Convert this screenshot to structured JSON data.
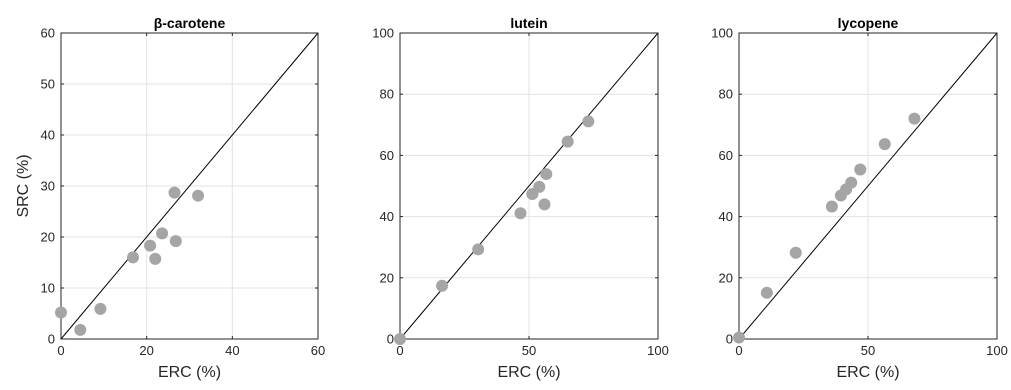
{
  "chart_data": [
    {
      "type": "scatter",
      "title": "β-carotene",
      "xlabel": "ERC (%)",
      "ylabel": "SRC (%)",
      "xlim": [
        0,
        60
      ],
      "ylim": [
        0,
        60
      ],
      "xticks": [
        "0",
        "20",
        "40",
        "60"
      ],
      "yticks": [
        "0",
        "10",
        "20",
        "30",
        "40",
        "50",
        "60"
      ],
      "grid": true,
      "reference_line": "y = x",
      "points": [
        {
          "x": 0,
          "y": 5.2
        },
        {
          "x": 4.5,
          "y": 1.8
        },
        {
          "x": 9.2,
          "y": 5.9
        },
        {
          "x": 16.8,
          "y": 16.0
        },
        {
          "x": 20.8,
          "y": 18.3
        },
        {
          "x": 22.0,
          "y": 15.7
        },
        {
          "x": 23.6,
          "y": 20.7
        },
        {
          "x": 26.5,
          "y": 28.7
        },
        {
          "x": 26.8,
          "y": 19.2
        },
        {
          "x": 32.0,
          "y": 28.1
        }
      ]
    },
    {
      "type": "scatter",
      "title": "lutein",
      "xlabel": "ERC (%)",
      "ylabel": "",
      "xlim": [
        0,
        100
      ],
      "ylim": [
        0,
        100
      ],
      "xticks": [
        "0",
        "50",
        "100"
      ],
      "yticks": [
        "0",
        "20",
        "40",
        "60",
        "80",
        "100"
      ],
      "grid": true,
      "reference_line": "y = x",
      "points": [
        {
          "x": 0,
          "y": 0
        },
        {
          "x": 16.3,
          "y": 17.4
        },
        {
          "x": 30.3,
          "y": 29.3
        },
        {
          "x": 46.7,
          "y": 41.1
        },
        {
          "x": 51.3,
          "y": 47.4
        },
        {
          "x": 54.0,
          "y": 49.7
        },
        {
          "x": 56.0,
          "y": 44.0
        },
        {
          "x": 56.7,
          "y": 53.9
        },
        {
          "x": 65.0,
          "y": 64.5
        },
        {
          "x": 73.0,
          "y": 71.1
        }
      ]
    },
    {
      "type": "scatter",
      "title": "lycopene",
      "xlabel": "ERC (%)",
      "ylabel": "",
      "xlim": [
        0,
        100
      ],
      "ylim": [
        0,
        100
      ],
      "xticks": [
        "0",
        "50",
        "100"
      ],
      "yticks": [
        "0",
        "20",
        "40",
        "60",
        "80",
        "100"
      ],
      "grid": true,
      "reference_line": "y = x",
      "points": [
        {
          "x": 0,
          "y": 0.5
        },
        {
          "x": 10.8,
          "y": 15.1
        },
        {
          "x": 22.0,
          "y": 28.2
        },
        {
          "x": 36.0,
          "y": 43.3
        },
        {
          "x": 39.5,
          "y": 46.9
        },
        {
          "x": 41.5,
          "y": 48.9
        },
        {
          "x": 43.5,
          "y": 51.1
        },
        {
          "x": 47.0,
          "y": 55.4
        },
        {
          "x": 56.5,
          "y": 63.7
        },
        {
          "x": 68.0,
          "y": 72.0
        }
      ]
    }
  ],
  "colors": {
    "marker": "#a5a5a5",
    "grid": "#e3e3e3",
    "axis": "#262626",
    "diagonal": "#000000"
  }
}
